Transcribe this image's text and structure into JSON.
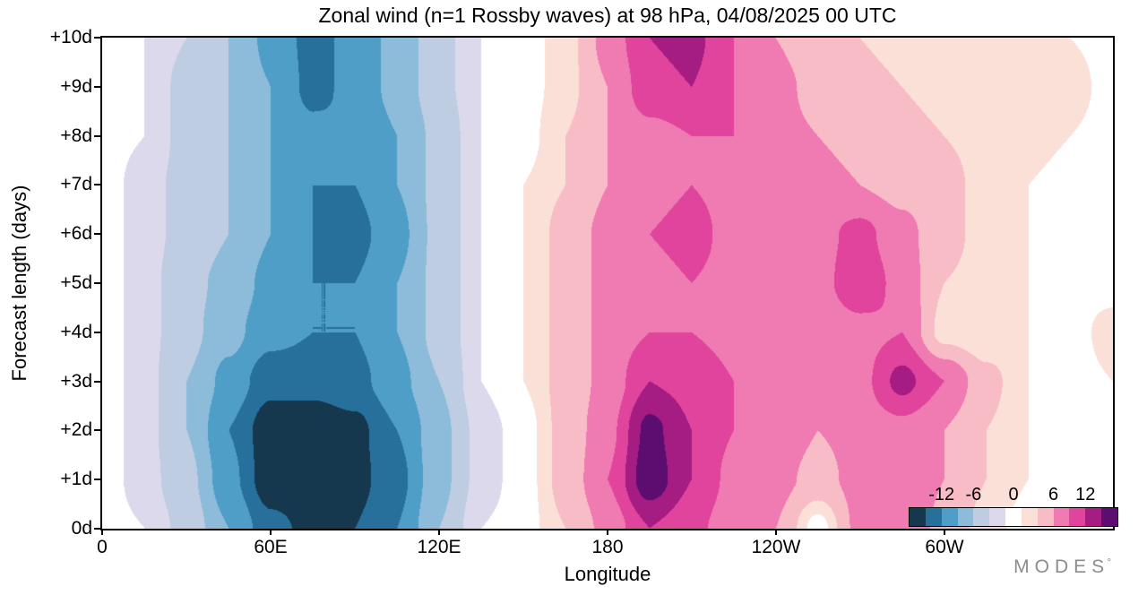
{
  "chart": {
    "title": "Zonal wind (n=1 Rossby waves) at 98 hPa,  04/08/2025  00 UTC",
    "xlabel": "Longitude",
    "ylabel": "Forecast length (days)",
    "logo": "MODES",
    "logo_mark": "°"
  },
  "chart_data": {
    "type": "heatmap",
    "title": "Zonal wind (n=1 Rossby waves) at 98 hPa, 04/08/2025 00 UTC",
    "xlabel": "Longitude",
    "ylabel": "Forecast length (days)",
    "xlim": [
      0,
      360
    ],
    "ylim": [
      0,
      10
    ],
    "x_ticks": [
      {
        "value": 0,
        "label": "0"
      },
      {
        "value": 60,
        "label": "60E"
      },
      {
        "value": 120,
        "label": "120E"
      },
      {
        "value": 180,
        "label": "180"
      },
      {
        "value": 240,
        "label": "120W"
      },
      {
        "value": 300,
        "label": "60W"
      }
    ],
    "y_ticks": [
      {
        "value": 0,
        "label": "0d"
      },
      {
        "value": 1,
        "label": "+1d"
      },
      {
        "value": 2,
        "label": "+2d"
      },
      {
        "value": 3,
        "label": "+3d"
      },
      {
        "value": 4,
        "label": "+4d"
      },
      {
        "value": 5,
        "label": "+5d"
      },
      {
        "value": 6,
        "label": "+6d"
      },
      {
        "value": 7,
        "label": "+7d"
      },
      {
        "value": 8,
        "label": "+8d"
      },
      {
        "value": 9,
        "label": "+9d"
      },
      {
        "value": 10,
        "label": "+10d"
      }
    ],
    "lons": [
      0,
      15,
      30,
      45,
      60,
      75,
      90,
      105,
      120,
      135,
      150,
      165,
      180,
      195,
      210,
      225,
      240,
      255,
      270,
      285,
      300,
      315,
      330,
      345,
      360
    ],
    "days": [
      0,
      1,
      2,
      3,
      4,
      5,
      6,
      7,
      8,
      9,
      10
    ],
    "grid": [
      [
        0,
        -1,
        -4,
        -9,
        -14,
        -16,
        -15,
        -12,
        -6,
        -1,
        0,
        3,
        7,
        12,
        10,
        7,
        6,
        0,
        7,
        9,
        5,
        2,
        0,
        0,
        0
      ],
      [
        0,
        -2,
        -5,
        -11,
        -17,
        -18,
        -16,
        -13,
        -7,
        -2,
        0,
        4,
        9,
        17,
        12,
        8,
        7,
        5,
        7,
        9,
        6,
        3,
        1,
        0,
        0
      ],
      [
        0,
        -2,
        -6,
        -12,
        -17,
        -17,
        -16,
        -12,
        -7,
        -2,
        0,
        4,
        8,
        16,
        12,
        9,
        8,
        6,
        7,
        8,
        6,
        3,
        1,
        0,
        0
      ],
      [
        0,
        -2,
        -6,
        -10,
        -14,
        -14,
        -13,
        -10,
        -6,
        -1,
        1,
        4,
        7,
        12,
        11,
        9,
        8,
        7,
        8,
        13,
        9,
        4,
        1,
        0,
        1
      ],
      [
        0,
        -2,
        -5,
        -8,
        -11,
        -12,
        -12,
        -9,
        -5,
        -1,
        1,
        4,
        7,
        9,
        9,
        8,
        7,
        7,
        8,
        9,
        2,
        1,
        1,
        0,
        2
      ],
      [
        0,
        -2,
        -5,
        -7,
        -10,
        -12,
        -12,
        -9,
        -5,
        -1,
        1,
        4,
        7,
        8,
        9,
        8,
        7,
        8,
        11,
        8,
        3,
        2,
        1,
        0,
        0
      ],
      [
        0,
        -2,
        -4,
        -6,
        -9,
        -12,
        -13,
        -10,
        -5,
        -1,
        1,
        4,
        7,
        9,
        10,
        8,
        7,
        8,
        10,
        7,
        4,
        2,
        1,
        0,
        0
      ],
      [
        0,
        -2,
        -4,
        -6,
        -9,
        -12,
        -12,
        -9,
        -5,
        -1,
        1,
        3,
        6,
        8,
        9,
        8,
        7,
        7,
        6,
        5,
        4,
        2,
        1,
        0,
        0
      ],
      [
        0,
        -1,
        -4,
        -6,
        -9,
        -11,
        -12,
        -9,
        -5,
        -1,
        0,
        3,
        6,
        8,
        9,
        9,
        7,
        6,
        5,
        4,
        3,
        2,
        2,
        1,
        0
      ],
      [
        0,
        -1,
        -4,
        -6,
        -9,
        -13,
        -11,
        -8,
        -4,
        -1,
        0,
        2,
        6,
        11,
        12,
        9,
        7,
        5,
        4,
        3,
        2,
        2,
        3,
        2,
        0
      ],
      [
        0,
        -1,
        -3,
        -6,
        -10,
        -13,
        -11,
        -8,
        -4,
        -1,
        0,
        2,
        7,
        12,
        13,
        9,
        6,
        4,
        3,
        2,
        2,
        1,
        2,
        1,
        0
      ]
    ],
    "levels": [
      -15,
      -12,
      -9,
      -6,
      -3,
      -1,
      1,
      3,
      6,
      9,
      12,
      15
    ],
    "colors": [
      "#16384e",
      "#27709c",
      "#4f9ec7",
      "#8cbcd9",
      "#bfcde3",
      "#dbd9eb",
      "#ffffff",
      "#fbe0d7",
      "#f8bcc6",
      "#f07ab2",
      "#e0449c",
      "#a51c82",
      "#5d0d70"
    ],
    "colorbar_labels": [
      -12,
      -6,
      0,
      6,
      12
    ],
    "legend_position": "inside bottom-right",
    "grid_lines": false
  }
}
